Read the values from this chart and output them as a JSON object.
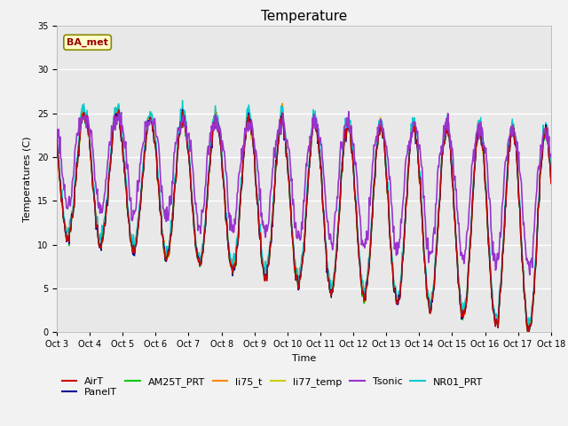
{
  "title": "Temperature",
  "xlabel": "Time",
  "ylabel": "Temperatures (C)",
  "ylim": [
    0,
    35
  ],
  "yticks": [
    0,
    5,
    10,
    15,
    20,
    25,
    30,
    35
  ],
  "x_labels": [
    "Oct 3",
    "Oct 4",
    "Oct 5",
    "Oct 6",
    "Oct 7",
    "Oct 8",
    "Oct 9",
    "Oct 10",
    "Oct 11",
    "Oct 12",
    "Oct 13",
    "Oct 14",
    "Oct 15",
    "Oct 16",
    "Oct 17",
    "Oct 18"
  ],
  "series_order": [
    "AirT",
    "PanelT",
    "AM25T_PRT",
    "li75_t",
    "li77_temp",
    "Tsonic",
    "NR01_PRT"
  ],
  "series": {
    "AirT": {
      "color": "#cc0000",
      "lw": 1.0
    },
    "PanelT": {
      "color": "#000099",
      "lw": 1.0
    },
    "AM25T_PRT": {
      "color": "#00cc00",
      "lw": 1.0
    },
    "li75_t": {
      "color": "#ff8800",
      "lw": 1.0
    },
    "li77_temp": {
      "color": "#cccc00",
      "lw": 1.0
    },
    "Tsonic": {
      "color": "#9933cc",
      "lw": 1.2
    },
    "NR01_PRT": {
      "color": "#00cccc",
      "lw": 1.0
    }
  },
  "annotation": {
    "text": "BA_met",
    "text_color": "#990000",
    "bg_color": "#ffffcc",
    "edge_color": "#888800",
    "fontsize": 8,
    "fontweight": "bold"
  },
  "plot_bg": "#e8e8e8",
  "fig_bg": "#f2f2f2",
  "grid_color": "#ffffff",
  "title_fontsize": 11,
  "axis_label_fontsize": 8,
  "tick_fontsize": 7,
  "legend_fontsize": 8
}
